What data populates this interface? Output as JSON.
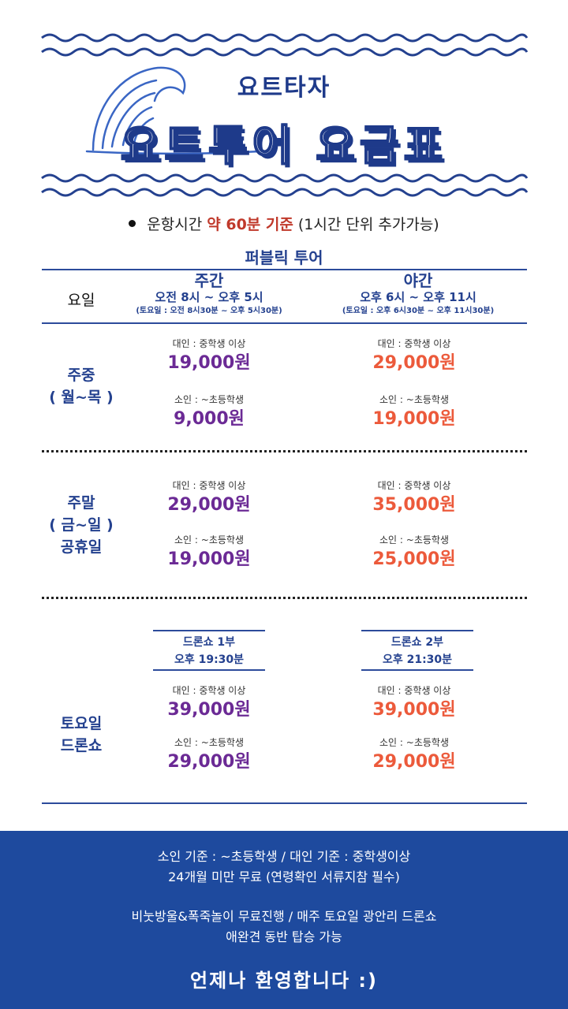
{
  "header": {
    "brand": "요트타자",
    "title": "요트투어 요금표"
  },
  "operation_note": {
    "prefix": "운항시간 ",
    "highlight": "약 60분 기준",
    "suffix": " (1시간 단위 추가가능)"
  },
  "section_title": "퍼블릭 투어",
  "columns": {
    "day_header": "요일",
    "day": {
      "title": "주간",
      "time": "오전 8시 ~ 오후 5시",
      "saturday": "(토요일 : 오전 8시30분 ~ 오후 5시30분)"
    },
    "night": {
      "title": "야간",
      "time": "오후 6시 ~ 오후 11시",
      "saturday": "(토요일 : 오후 6시30분 ~ 오후 11시30분)"
    }
  },
  "labels": {
    "adult": "대인 : 중학생 이상",
    "child": "소인 : ~초등학생"
  },
  "rows": [
    {
      "label_lines": [
        "주중",
        "( 월~목 )"
      ],
      "day_adult": "19,000원",
      "day_child": "9,000원",
      "night_adult": "29,000원",
      "night_child": "19,000원"
    },
    {
      "label_lines": [
        "주말",
        "( 금~일 )",
        "공휴일"
      ],
      "day_adult": "29,000원",
      "day_child": "19,000원",
      "night_adult": "35,000원",
      "night_child": "25,000원"
    },
    {
      "label_lines": [
        "토요일",
        "드론쇼"
      ],
      "show1": {
        "name": "드론쇼 1부",
        "time": "오후 19:30분"
      },
      "show2": {
        "name": "드론쇼 2부",
        "time": "오후 21:30분"
      },
      "day_adult": "39,000원",
      "day_child": "29,000원",
      "night_adult": "39,000원",
      "night_child": "29,000원"
    }
  ],
  "footer": {
    "line1": "소인 기준 : ~초등학생 / 대인 기준 : 중학생이상",
    "line2": "24개월 미만 무료 (연령확인 서류지참 필수)",
    "line3": "비눗방울&폭죽놀이 무료진행 / 매주 토요일 광안리 드론쇼",
    "line4": "애완견 동반 탑승 가능",
    "welcome": "언제나 환영합니다 :)"
  },
  "colors": {
    "navy": "#24418f",
    "purple": "#6b2a95",
    "orange": "#ec5a3b",
    "footer_bg": "#1e4a9e"
  }
}
